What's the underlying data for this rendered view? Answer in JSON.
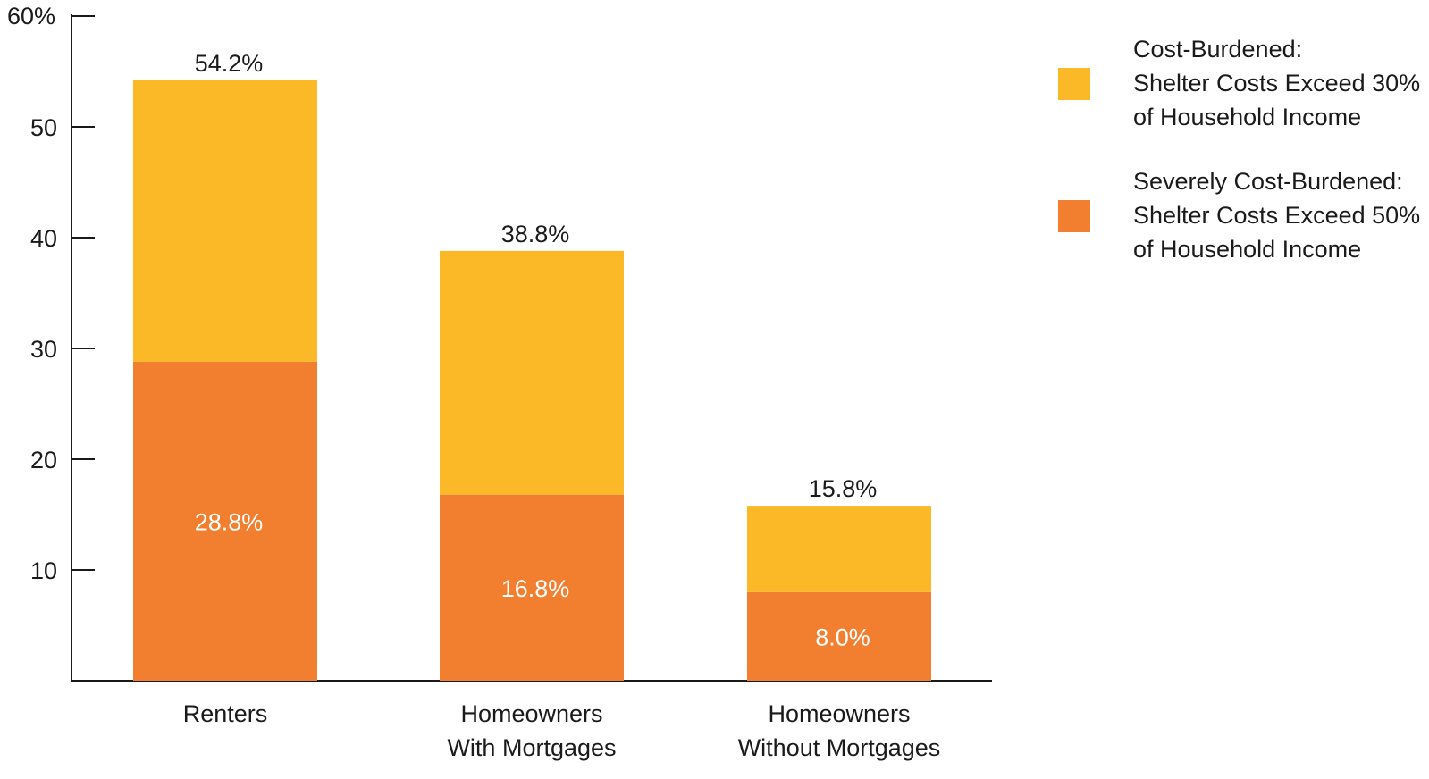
{
  "chart_data": {
    "type": "bar",
    "stacked": true,
    "categories": [
      [
        "Renters"
      ],
      [
        "Homeowners",
        "With Mortgages"
      ],
      [
        "Homeowners",
        "Without Mortgages"
      ]
    ],
    "series": [
      {
        "name_lines": [
          "Severely Cost-Burdened:",
          "Shelter Costs Exceed 50%",
          "of Household Income"
        ],
        "color": "#F27F30",
        "values": [
          28.8,
          16.8,
          8.0
        ],
        "labels": [
          "28.8%",
          "16.8%",
          "8.0%"
        ]
      },
      {
        "name_lines": [
          "Cost-Burdened:",
          "Shelter Costs Exceed 30%",
          "of Household Income"
        ],
        "color": "#FBB827",
        "values": [
          25.4,
          22.0,
          7.8
        ],
        "totals": [
          54.2,
          38.8,
          15.8
        ],
        "total_labels": [
          "54.2%",
          "38.8%",
          "15.8%"
        ]
      }
    ],
    "ylim": [
      0,
      60
    ],
    "yticks": [
      10,
      20,
      30,
      40,
      50,
      60
    ],
    "ytick_labels": [
      "10",
      "20",
      "30",
      "40",
      "50",
      "60%"
    ],
    "grid": false,
    "legend_position": "top-right",
    "legend_order": [
      1,
      0
    ]
  }
}
